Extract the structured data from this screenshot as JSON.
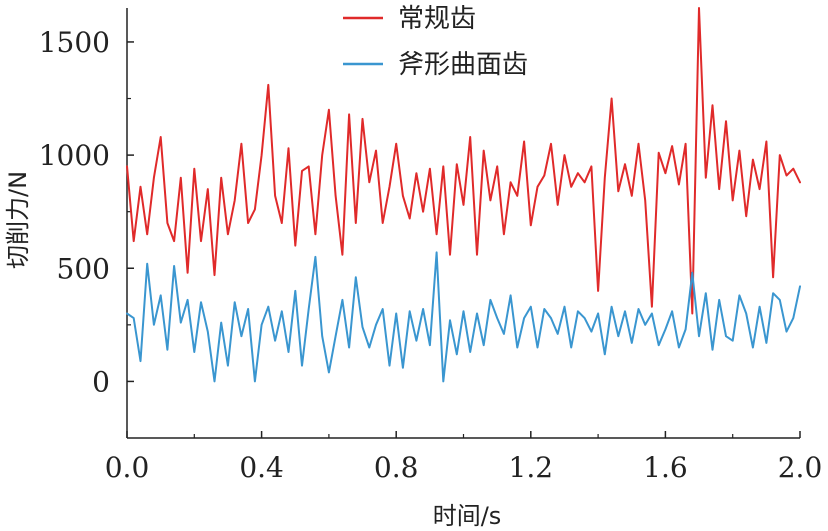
{
  "chart_data": {
    "type": "line",
    "xlabel": "时间/s",
    "ylabel": "切削力/N",
    "xlim": [
      0,
      2.0
    ],
    "ylim": [
      -250,
      1650
    ],
    "x_ticks": [
      "0.0",
      "0.4",
      "0.8",
      "1.2",
      "1.6",
      "2.0"
    ],
    "y_ticks": [
      "0",
      "500",
      "1000",
      "1500"
    ],
    "grid": false,
    "legend_position": "top-center",
    "series": [
      {
        "name": "常规齿",
        "color": "#e02a2a",
        "x": [
          0.0,
          0.02,
          0.04,
          0.06,
          0.08,
          0.1,
          0.12,
          0.14,
          0.16,
          0.18,
          0.2,
          0.22,
          0.24,
          0.26,
          0.28,
          0.3,
          0.32,
          0.34,
          0.36,
          0.38,
          0.4,
          0.42,
          0.44,
          0.46,
          0.48,
          0.5,
          0.52,
          0.54,
          0.56,
          0.58,
          0.6,
          0.62,
          0.64,
          0.66,
          0.68,
          0.7,
          0.72,
          0.74,
          0.76,
          0.78,
          0.8,
          0.82,
          0.84,
          0.86,
          0.88,
          0.9,
          0.92,
          0.94,
          0.96,
          0.98,
          1.0,
          1.02,
          1.04,
          1.06,
          1.08,
          1.1,
          1.12,
          1.14,
          1.16,
          1.18,
          1.2,
          1.22,
          1.24,
          1.26,
          1.28,
          1.3,
          1.32,
          1.34,
          1.36,
          1.38,
          1.4,
          1.42,
          1.44,
          1.46,
          1.48,
          1.5,
          1.52,
          1.54,
          1.56,
          1.58,
          1.6,
          1.62,
          1.64,
          1.66,
          1.68,
          1.7,
          1.72,
          1.74,
          1.76,
          1.78,
          1.8,
          1.82,
          1.84,
          1.86,
          1.88,
          1.9,
          1.92,
          1.94,
          1.96,
          1.98,
          2.0
        ],
        "values": [
          950,
          620,
          860,
          650,
          900,
          1080,
          700,
          620,
          900,
          480,
          940,
          620,
          850,
          470,
          900,
          650,
          800,
          1050,
          700,
          760,
          1000,
          1310,
          820,
          700,
          1030,
          600,
          930,
          950,
          650,
          1000,
          1200,
          820,
          560,
          1180,
          700,
          1160,
          880,
          1020,
          700,
          860,
          1050,
          820,
          720,
          920,
          750,
          940,
          650,
          950,
          560,
          960,
          780,
          1080,
          560,
          1020,
          800,
          950,
          650,
          880,
          820,
          1060,
          690,
          860,
          910,
          1050,
          780,
          1000,
          860,
          920,
          880,
          950,
          400,
          900,
          1250,
          840,
          960,
          820,
          1050,
          800,
          330,
          1010,
          920,
          1040,
          870,
          1050,
          300,
          1650,
          900,
          1220,
          850,
          1150,
          800,
          1020,
          730,
          980,
          850,
          1060,
          460,
          1000,
          910,
          940,
          880
        ]
      },
      {
        "name": "斧形曲面齿",
        "color": "#3a96d0",
        "x": [
          0.0,
          0.02,
          0.04,
          0.06,
          0.08,
          0.1,
          0.12,
          0.14,
          0.16,
          0.18,
          0.2,
          0.22,
          0.24,
          0.26,
          0.28,
          0.3,
          0.32,
          0.34,
          0.36,
          0.38,
          0.4,
          0.42,
          0.44,
          0.46,
          0.48,
          0.5,
          0.52,
          0.54,
          0.56,
          0.58,
          0.6,
          0.62,
          0.64,
          0.66,
          0.68,
          0.7,
          0.72,
          0.74,
          0.76,
          0.78,
          0.8,
          0.82,
          0.84,
          0.86,
          0.88,
          0.9,
          0.92,
          0.94,
          0.96,
          0.98,
          1.0,
          1.02,
          1.04,
          1.06,
          1.08,
          1.1,
          1.12,
          1.14,
          1.16,
          1.18,
          1.2,
          1.22,
          1.24,
          1.26,
          1.28,
          1.3,
          1.32,
          1.34,
          1.36,
          1.38,
          1.4,
          1.42,
          1.44,
          1.46,
          1.48,
          1.5,
          1.52,
          1.54,
          1.56,
          1.58,
          1.6,
          1.62,
          1.64,
          1.66,
          1.68,
          1.7,
          1.72,
          1.74,
          1.76,
          1.78,
          1.8,
          1.82,
          1.84,
          1.86,
          1.88,
          1.9,
          1.92,
          1.94,
          1.96,
          1.98,
          2.0
        ],
        "values": [
          300,
          280,
          90,
          520,
          250,
          380,
          140,
          510,
          260,
          360,
          130,
          350,
          220,
          0,
          260,
          70,
          350,
          200,
          320,
          0,
          250,
          330,
          180,
          310,
          130,
          400,
          70,
          320,
          550,
          200,
          40,
          200,
          360,
          150,
          460,
          240,
          150,
          250,
          320,
          70,
          300,
          60,
          310,
          180,
          320,
          160,
          570,
          0,
          270,
          120,
          310,
          130,
          300,
          160,
          360,
          280,
          210,
          380,
          150,
          280,
          330,
          150,
          320,
          280,
          210,
          330,
          150,
          310,
          280,
          220,
          300,
          120,
          330,
          200,
          310,
          170,
          320,
          250,
          300,
          160,
          230,
          310,
          150,
          230,
          480,
          200,
          390,
          140,
          360,
          200,
          180,
          380,
          300,
          150,
          330,
          170,
          390,
          360,
          220,
          280,
          420
        ]
      }
    ]
  }
}
